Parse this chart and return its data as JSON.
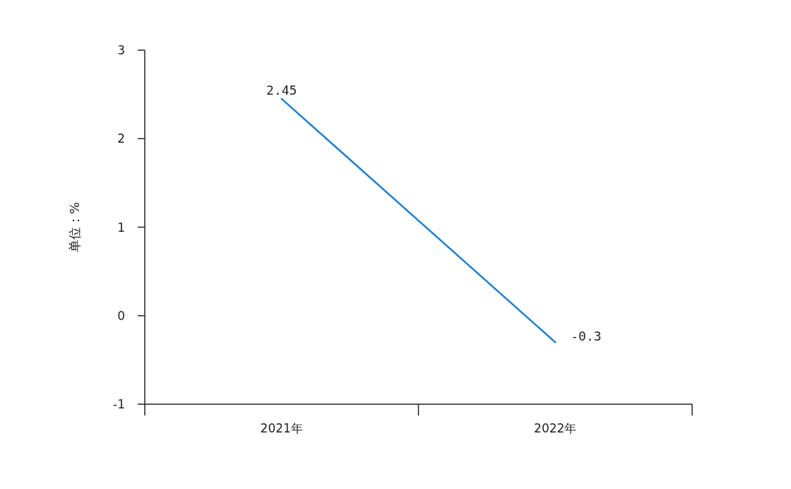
{
  "chart_data": {
    "type": "line",
    "ylabel": "单位：%",
    "categories": [
      "2021年",
      "2022年"
    ],
    "series": [
      {
        "color": "#1a7fd4",
        "values": [
          2.45,
          -0.3
        ]
      }
    ],
    "ylim": [
      -1,
      3
    ],
    "yticks": [
      -1,
      0,
      1,
      2,
      3
    ],
    "data_labels": true,
    "grid": false,
    "marker": "none",
    "line_style": "solid"
  }
}
